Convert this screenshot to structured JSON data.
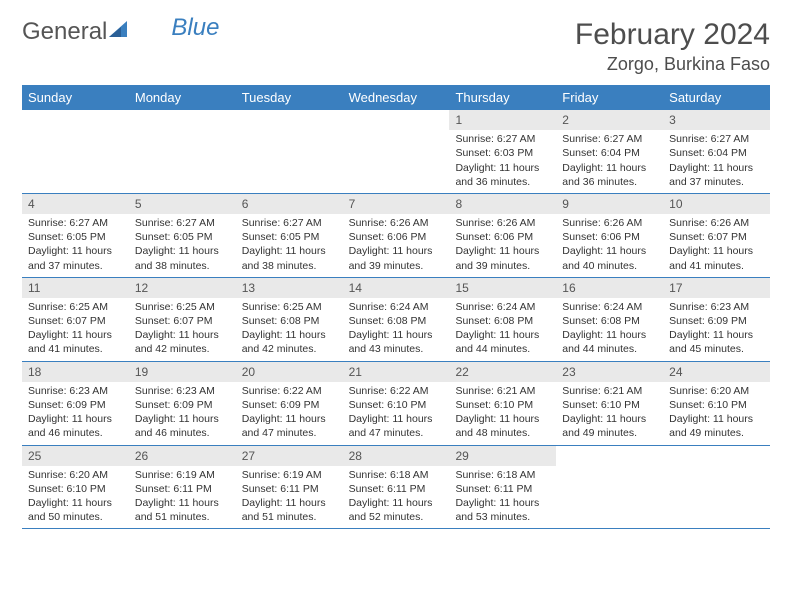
{
  "brand": {
    "part1": "General",
    "part2": "Blue"
  },
  "title": "February 2024",
  "location": "Zorgo, Burkina Faso",
  "colors": {
    "header_bg": "#3a7fbf",
    "header_text": "#ffffff",
    "date_bg": "#e9e9e9",
    "body_text": "#333333",
    "title_text": "#4d4d4d",
    "border": "#3a7fbf"
  },
  "day_names": [
    "Sunday",
    "Monday",
    "Tuesday",
    "Wednesday",
    "Thursday",
    "Friday",
    "Saturday"
  ],
  "weeks": [
    [
      {
        "date": "",
        "sunrise": "",
        "sunset": "",
        "daylight": ""
      },
      {
        "date": "",
        "sunrise": "",
        "sunset": "",
        "daylight": ""
      },
      {
        "date": "",
        "sunrise": "",
        "sunset": "",
        "daylight": ""
      },
      {
        "date": "",
        "sunrise": "",
        "sunset": "",
        "daylight": ""
      },
      {
        "date": "1",
        "sunrise": "Sunrise: 6:27 AM",
        "sunset": "Sunset: 6:03 PM",
        "daylight": "Daylight: 11 hours and 36 minutes."
      },
      {
        "date": "2",
        "sunrise": "Sunrise: 6:27 AM",
        "sunset": "Sunset: 6:04 PM",
        "daylight": "Daylight: 11 hours and 36 minutes."
      },
      {
        "date": "3",
        "sunrise": "Sunrise: 6:27 AM",
        "sunset": "Sunset: 6:04 PM",
        "daylight": "Daylight: 11 hours and 37 minutes."
      }
    ],
    [
      {
        "date": "4",
        "sunrise": "Sunrise: 6:27 AM",
        "sunset": "Sunset: 6:05 PM",
        "daylight": "Daylight: 11 hours and 37 minutes."
      },
      {
        "date": "5",
        "sunrise": "Sunrise: 6:27 AM",
        "sunset": "Sunset: 6:05 PM",
        "daylight": "Daylight: 11 hours and 38 minutes."
      },
      {
        "date": "6",
        "sunrise": "Sunrise: 6:27 AM",
        "sunset": "Sunset: 6:05 PM",
        "daylight": "Daylight: 11 hours and 38 minutes."
      },
      {
        "date": "7",
        "sunrise": "Sunrise: 6:26 AM",
        "sunset": "Sunset: 6:06 PM",
        "daylight": "Daylight: 11 hours and 39 minutes."
      },
      {
        "date": "8",
        "sunrise": "Sunrise: 6:26 AM",
        "sunset": "Sunset: 6:06 PM",
        "daylight": "Daylight: 11 hours and 39 minutes."
      },
      {
        "date": "9",
        "sunrise": "Sunrise: 6:26 AM",
        "sunset": "Sunset: 6:06 PM",
        "daylight": "Daylight: 11 hours and 40 minutes."
      },
      {
        "date": "10",
        "sunrise": "Sunrise: 6:26 AM",
        "sunset": "Sunset: 6:07 PM",
        "daylight": "Daylight: 11 hours and 41 minutes."
      }
    ],
    [
      {
        "date": "11",
        "sunrise": "Sunrise: 6:25 AM",
        "sunset": "Sunset: 6:07 PM",
        "daylight": "Daylight: 11 hours and 41 minutes."
      },
      {
        "date": "12",
        "sunrise": "Sunrise: 6:25 AM",
        "sunset": "Sunset: 6:07 PM",
        "daylight": "Daylight: 11 hours and 42 minutes."
      },
      {
        "date": "13",
        "sunrise": "Sunrise: 6:25 AM",
        "sunset": "Sunset: 6:08 PM",
        "daylight": "Daylight: 11 hours and 42 minutes."
      },
      {
        "date": "14",
        "sunrise": "Sunrise: 6:24 AM",
        "sunset": "Sunset: 6:08 PM",
        "daylight": "Daylight: 11 hours and 43 minutes."
      },
      {
        "date": "15",
        "sunrise": "Sunrise: 6:24 AM",
        "sunset": "Sunset: 6:08 PM",
        "daylight": "Daylight: 11 hours and 44 minutes."
      },
      {
        "date": "16",
        "sunrise": "Sunrise: 6:24 AM",
        "sunset": "Sunset: 6:08 PM",
        "daylight": "Daylight: 11 hours and 44 minutes."
      },
      {
        "date": "17",
        "sunrise": "Sunrise: 6:23 AM",
        "sunset": "Sunset: 6:09 PM",
        "daylight": "Daylight: 11 hours and 45 minutes."
      }
    ],
    [
      {
        "date": "18",
        "sunrise": "Sunrise: 6:23 AM",
        "sunset": "Sunset: 6:09 PM",
        "daylight": "Daylight: 11 hours and 46 minutes."
      },
      {
        "date": "19",
        "sunrise": "Sunrise: 6:23 AM",
        "sunset": "Sunset: 6:09 PM",
        "daylight": "Daylight: 11 hours and 46 minutes."
      },
      {
        "date": "20",
        "sunrise": "Sunrise: 6:22 AM",
        "sunset": "Sunset: 6:09 PM",
        "daylight": "Daylight: 11 hours and 47 minutes."
      },
      {
        "date": "21",
        "sunrise": "Sunrise: 6:22 AM",
        "sunset": "Sunset: 6:10 PM",
        "daylight": "Daylight: 11 hours and 47 minutes."
      },
      {
        "date": "22",
        "sunrise": "Sunrise: 6:21 AM",
        "sunset": "Sunset: 6:10 PM",
        "daylight": "Daylight: 11 hours and 48 minutes."
      },
      {
        "date": "23",
        "sunrise": "Sunrise: 6:21 AM",
        "sunset": "Sunset: 6:10 PM",
        "daylight": "Daylight: 11 hours and 49 minutes."
      },
      {
        "date": "24",
        "sunrise": "Sunrise: 6:20 AM",
        "sunset": "Sunset: 6:10 PM",
        "daylight": "Daylight: 11 hours and 49 minutes."
      }
    ],
    [
      {
        "date": "25",
        "sunrise": "Sunrise: 6:20 AM",
        "sunset": "Sunset: 6:10 PM",
        "daylight": "Daylight: 11 hours and 50 minutes."
      },
      {
        "date": "26",
        "sunrise": "Sunrise: 6:19 AM",
        "sunset": "Sunset: 6:11 PM",
        "daylight": "Daylight: 11 hours and 51 minutes."
      },
      {
        "date": "27",
        "sunrise": "Sunrise: 6:19 AM",
        "sunset": "Sunset: 6:11 PM",
        "daylight": "Daylight: 11 hours and 51 minutes."
      },
      {
        "date": "28",
        "sunrise": "Sunrise: 6:18 AM",
        "sunset": "Sunset: 6:11 PM",
        "daylight": "Daylight: 11 hours and 52 minutes."
      },
      {
        "date": "29",
        "sunrise": "Sunrise: 6:18 AM",
        "sunset": "Sunset: 6:11 PM",
        "daylight": "Daylight: 11 hours and 53 minutes."
      },
      {
        "date": "",
        "sunrise": "",
        "sunset": "",
        "daylight": ""
      },
      {
        "date": "",
        "sunrise": "",
        "sunset": "",
        "daylight": ""
      }
    ]
  ]
}
